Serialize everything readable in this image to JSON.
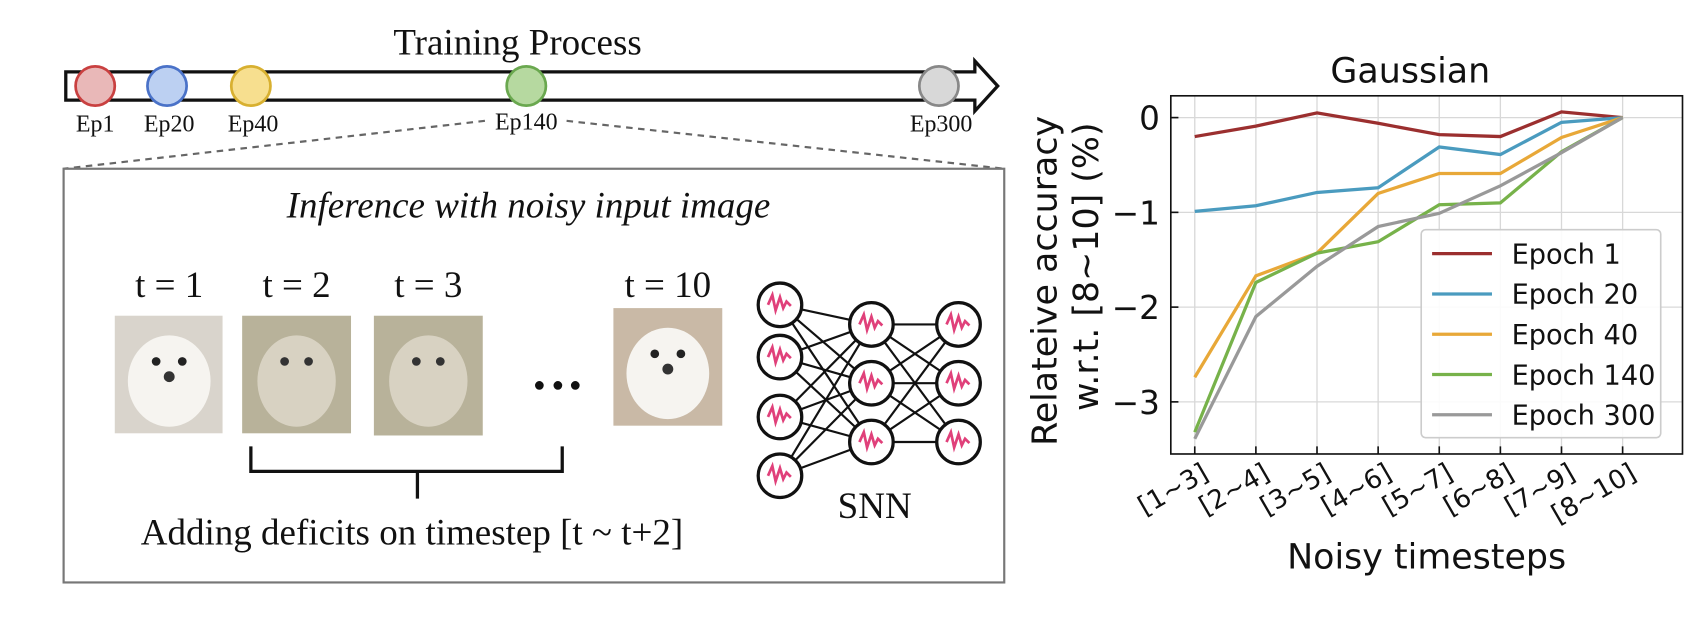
{
  "diagram": {
    "training_title": "Training Process",
    "epochs": [
      "Ep1",
      "Ep20",
      "Ep40",
      "Ep140",
      "Ep300"
    ],
    "box_title": "Inference with noisy input image",
    "timesteps": [
      "t = 1",
      "t = 2",
      "t = 3",
      "t = 10"
    ],
    "caption": "Adding deficits on timestep [t ~ t+2]",
    "network_label": "SNN"
  },
  "chart_data": {
    "type": "line",
    "title": "Gaussian",
    "x_label": "Noisy timesteps",
    "y_label": [
      "Relateive accuracy",
      "w.r.t. [8~10] (%)"
    ],
    "categories": [
      "[1~3]",
      "[2~4]",
      "[3~5]",
      "[4~6]",
      "[5~7]",
      "[6~8]",
      "[7~9]",
      "[8~10]"
    ],
    "series": [
      {
        "name": "Epoch 1",
        "color": "#9b2f2f",
        "values": [
          -0.2,
          -0.09,
          0.05,
          -0.06,
          -0.18,
          -0.2,
          0.06,
          0
        ]
      },
      {
        "name": "Epoch 20",
        "color": "#4a9bbf",
        "values": [
          -0.99,
          -0.93,
          -0.79,
          -0.74,
          -0.31,
          -0.39,
          -0.05,
          0
        ]
      },
      {
        "name": "Epoch 40",
        "color": "#e8a838",
        "values": [
          -2.74,
          -1.67,
          -1.43,
          -0.8,
          -0.59,
          -0.59,
          -0.21,
          0
        ]
      },
      {
        "name": "Epoch 140",
        "color": "#77b24a",
        "values": [
          -3.32,
          -1.74,
          -1.43,
          -1.31,
          -0.92,
          -0.9,
          -0.36,
          0
        ]
      },
      {
        "name": "Epoch 300",
        "color": "#999999",
        "values": [
          -3.39,
          -2.1,
          -1.57,
          -1.15,
          -1.01,
          -0.72,
          -0.37,
          0
        ]
      }
    ],
    "ylim": [
      -3.55,
      0.23
    ],
    "yticks": [
      0,
      {
        "value": -1,
        "label": "−1"
      },
      {
        "value": -2,
        "label": "−2"
      },
      {
        "value": -3,
        "label": "−3"
      }
    ],
    "grid": true,
    "legend": "lower right"
  }
}
